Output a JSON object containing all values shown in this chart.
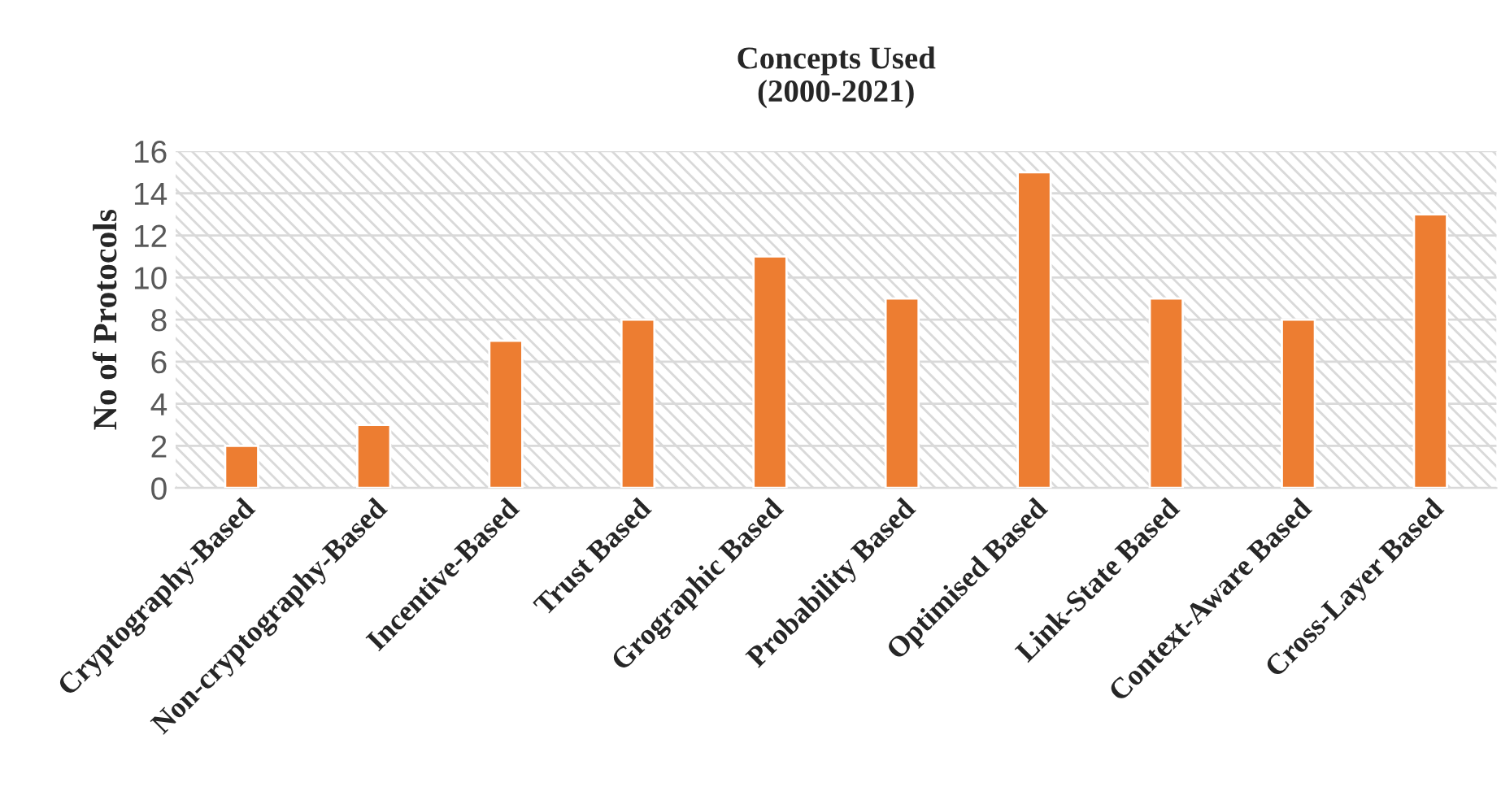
{
  "chart_data": {
    "type": "bar",
    "title": "Concepts Used\n(2000-2021)",
    "ylabel": "No of Protocols",
    "categories": [
      "Cryptography-Based",
      "Non-cryptography-Based",
      "Incentive-Based",
      "Trust Based",
      "Grographic Based",
      "Probability Based",
      "Optimised Based",
      "Link-State Based",
      "Context-Aware Based",
      "Cross-Layer Based"
    ],
    "values": [
      2,
      3,
      7,
      8,
      11,
      9,
      15,
      9,
      8,
      13
    ],
    "color": "#ed7d31",
    "ylim": [
      0,
      16
    ],
    "yticks": [
      0,
      2,
      4,
      6,
      8,
      10,
      12,
      14,
      16
    ],
    "grid": "y"
  }
}
